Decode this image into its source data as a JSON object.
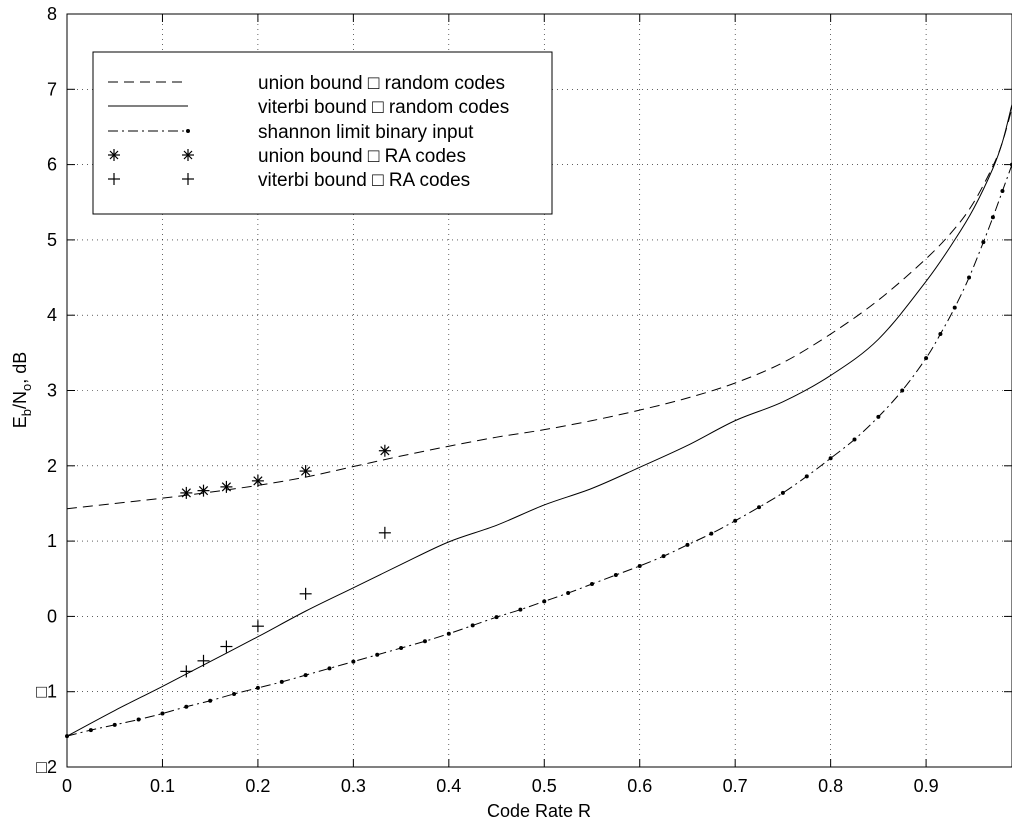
{
  "chart_data": {
    "type": "line",
    "title": "",
    "xlabel": "Code Rate R",
    "ylabel_main": "E",
    "ylabel_sub1": "b",
    "ylabel_mid": "/N",
    "ylabel_sub2": "o",
    "ylabel_tail": ", dB",
    "xlim": [
      0,
      0.99
    ],
    "ylim": [
      -2,
      8
    ],
    "xticks": [
      0,
      0.1,
      0.2,
      0.3,
      0.4,
      0.5,
      0.6,
      0.7,
      0.8,
      0.9
    ],
    "xtick_labels": [
      "0",
      "0.1",
      "0.2",
      "0.3",
      "0.4",
      "0.5",
      "0.6",
      "0.7",
      "0.8",
      "0.9"
    ],
    "yticks": [
      -2,
      -1,
      0,
      1,
      2,
      3,
      4,
      5,
      6,
      7,
      8
    ],
    "ytick_labels": [
      "□2",
      "□1",
      "0",
      "1",
      "2",
      "3",
      "4",
      "5",
      "6",
      "7",
      "8"
    ],
    "grid": true,
    "legend_position": "top-left",
    "series": [
      {
        "name": "union bound □ random codes",
        "style": "dashed",
        "x": [
          0.0,
          0.05,
          0.1,
          0.15,
          0.2,
          0.25,
          0.3,
          0.35,
          0.4,
          0.45,
          0.5,
          0.55,
          0.6,
          0.65,
          0.7,
          0.75,
          0.8,
          0.85,
          0.9,
          0.93,
          0.95,
          0.97,
          0.98,
          0.99
        ],
        "y": [
          1.43,
          1.5,
          1.57,
          1.65,
          1.74,
          1.85,
          1.99,
          2.13,
          2.26,
          2.38,
          2.48,
          2.6,
          2.74,
          2.9,
          3.1,
          3.37,
          3.75,
          4.2,
          4.75,
          5.15,
          5.5,
          5.98,
          6.3,
          6.75
        ]
      },
      {
        "name": "viterbi bound □ random codes",
        "style": "solid",
        "x": [
          0.0,
          0.05,
          0.1,
          0.15,
          0.2,
          0.25,
          0.3,
          0.35,
          0.4,
          0.45,
          0.5,
          0.55,
          0.6,
          0.65,
          0.7,
          0.75,
          0.8,
          0.85,
          0.9,
          0.93,
          0.95,
          0.97,
          0.98,
          0.99
        ],
        "y": [
          -1.59,
          -1.25,
          -0.93,
          -0.6,
          -0.27,
          0.07,
          0.38,
          0.69,
          0.99,
          1.21,
          1.48,
          1.7,
          1.98,
          2.27,
          2.6,
          2.85,
          3.2,
          3.68,
          4.45,
          5.0,
          5.42,
          5.95,
          6.3,
          6.8
        ]
      },
      {
        "name": "shannon limit binary input",
        "style": "dash-dot-marker",
        "x": [
          0.0,
          0.025,
          0.05,
          0.075,
          0.1,
          0.125,
          0.15,
          0.175,
          0.2,
          0.225,
          0.25,
          0.275,
          0.3,
          0.325,
          0.35,
          0.375,
          0.4,
          0.425,
          0.45,
          0.475,
          0.5,
          0.525,
          0.55,
          0.575,
          0.6,
          0.625,
          0.65,
          0.675,
          0.7,
          0.725,
          0.75,
          0.775,
          0.8,
          0.825,
          0.85,
          0.875,
          0.9,
          0.915,
          0.93,
          0.945,
          0.96,
          0.97,
          0.98,
          0.99
        ],
        "y": [
          -1.59,
          -1.51,
          -1.44,
          -1.37,
          -1.29,
          -1.2,
          -1.12,
          -1.03,
          -0.95,
          -0.87,
          -0.78,
          -0.69,
          -0.6,
          -0.51,
          -0.42,
          -0.33,
          -0.23,
          -0.12,
          -0.01,
          0.09,
          0.2,
          0.31,
          0.43,
          0.55,
          0.67,
          0.8,
          0.95,
          1.1,
          1.27,
          1.45,
          1.64,
          1.86,
          2.1,
          2.35,
          2.65,
          3.0,
          3.43,
          3.75,
          4.1,
          4.5,
          4.97,
          5.3,
          5.65,
          6.0
        ]
      },
      {
        "name": "union bound □ RA codes",
        "style": "star-marker",
        "x": [
          0.125,
          0.143,
          0.167,
          0.2,
          0.25,
          0.333
        ],
        "y": [
          1.64,
          1.67,
          1.72,
          1.8,
          1.93,
          2.2
        ]
      },
      {
        "name": "viterbi bound □ RA codes",
        "style": "plus-marker",
        "x": [
          0.125,
          0.143,
          0.167,
          0.2,
          0.25,
          0.333
        ],
        "y": [
          -0.73,
          -0.59,
          -0.4,
          -0.13,
          0.3,
          1.11
        ]
      }
    ]
  }
}
